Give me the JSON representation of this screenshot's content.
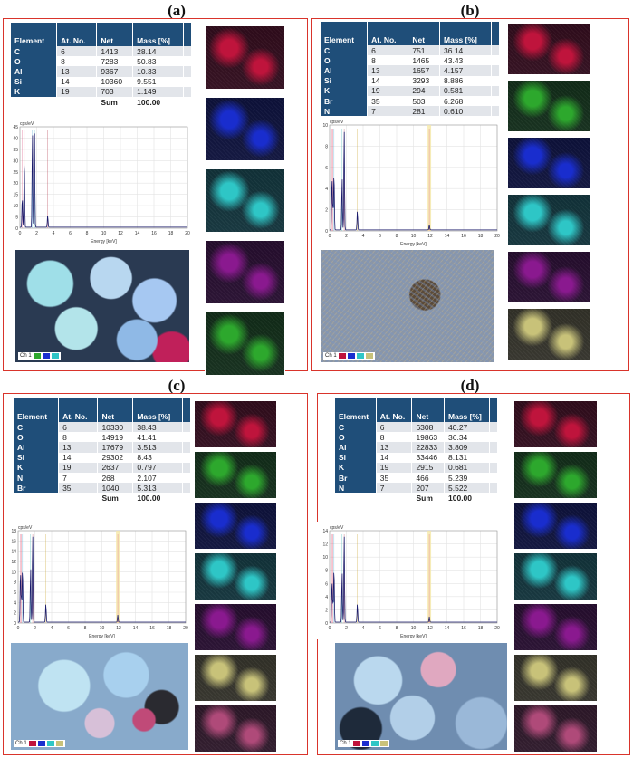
{
  "panels": [
    {
      "label": "(a)",
      "headers": [
        "Element",
        "At. No.",
        "Net",
        "Mass [%]"
      ],
      "rows": [
        [
          "C",
          "6",
          "1413",
          "28.14"
        ],
        [
          "O",
          "8",
          "7283",
          "50.83"
        ],
        [
          "Al",
          "13",
          "9367",
          "10.33"
        ],
        [
          "Si",
          "14",
          "10360",
          "9.551"
        ],
        [
          "K",
          "19",
          "703",
          "1.149"
        ]
      ],
      "sum_label": "Sum",
      "sum_value": "100.00",
      "spectrum": {
        "y_unit": "cps/eV",
        "y_ticks": [
          "0",
          "5",
          "10",
          "15",
          "20",
          "25",
          "30",
          "35",
          "40",
          "45"
        ],
        "x_label": "Energy [keV]",
        "x_ticks": [
          "0",
          "2",
          "4",
          "6",
          "8",
          "10",
          "12",
          "14",
          "16",
          "18",
          "20"
        ]
      },
      "legend_label": "Ch 1",
      "maps": [
        "#c0143c",
        "#1a2ecf",
        "#2fc6c6",
        "#8a1a8f",
        "#2ea82e"
      ]
    },
    {
      "label": "(b)",
      "headers": [
        "Element",
        "At. No.",
        "Net",
        "Mass [%]"
      ],
      "rows": [
        [
          "C",
          "6",
          "751",
          "36.14"
        ],
        [
          "O",
          "8",
          "1465",
          "43.43"
        ],
        [
          "Al",
          "13",
          "1657",
          "4.157"
        ],
        [
          "Si",
          "14",
          "3293",
          "8.886"
        ],
        [
          "K",
          "19",
          "294",
          "0.581"
        ],
        [
          "Br",
          "35",
          "503",
          "6.268"
        ],
        [
          "N",
          "7",
          "281",
          "0.610"
        ]
      ],
      "sum_label": "Sum",
      "sum_value": "100",
      "spectrum": {
        "y_unit": "cps/eV",
        "y_ticks": [
          "0",
          "2",
          "4",
          "6",
          "8",
          "10"
        ],
        "x_label": "Energy [keV]",
        "x_ticks": [
          "0",
          "2",
          "4",
          "6",
          "8",
          "10",
          "12",
          "14",
          "16",
          "18",
          "20"
        ]
      },
      "legend_label": "Ch 1",
      "maps": [
        "#c0143c",
        "#2ea82e",
        "#1a2ecf",
        "#2fc6c6",
        "#8a1a8f",
        "#c8c27a"
      ]
    },
    {
      "label": "(c)",
      "headers": [
        "Element",
        "At. No.",
        "Net",
        "Mass [%]"
      ],
      "rows": [
        [
          "C",
          "6",
          "10330",
          "38.43"
        ],
        [
          "O",
          "8",
          "14919",
          "41.41"
        ],
        [
          "Al",
          "13",
          "17679",
          "3.513"
        ],
        [
          "Si",
          "14",
          "29302",
          "8.43"
        ],
        [
          "K",
          "19",
          "2637",
          "0.797"
        ],
        [
          "N",
          "7",
          "268",
          "2.107"
        ],
        [
          "Br",
          "35",
          "1040",
          "5.313"
        ]
      ],
      "sum_label": "Sum",
      "sum_value": "100.00",
      "spectrum": {
        "y_unit": "cps/eV",
        "y_ticks": [
          "0",
          "2",
          "4",
          "6",
          "8",
          "10",
          "12",
          "14",
          "16",
          "18"
        ],
        "x_label": "Energy [keV]",
        "x_ticks": [
          "0",
          "2",
          "4",
          "6",
          "8",
          "10",
          "12",
          "14",
          "16",
          "18",
          "20"
        ]
      },
      "legend_label": "Ch 1",
      "maps": [
        "#c0143c",
        "#2ea82e",
        "#1a2ecf",
        "#2fc6c6",
        "#8a1a8f",
        "#c8c27a",
        "#b04a7a"
      ]
    },
    {
      "label": "(d)",
      "headers": [
        "Element",
        "At. No.",
        "Net",
        "Mass [%]"
      ],
      "rows": [
        [
          "C",
          "6",
          "6308",
          "40.27"
        ],
        [
          "O",
          "8",
          "19863",
          "36.34"
        ],
        [
          "Al",
          "13",
          "22833",
          "3.809"
        ],
        [
          "Si",
          "14",
          "33446",
          "8.131"
        ],
        [
          "K",
          "19",
          "2915",
          "0.681"
        ],
        [
          "Br",
          "35",
          "466",
          "5.239"
        ],
        [
          "N",
          "7",
          "207",
          "5.522"
        ]
      ],
      "sum_label": "Sum",
      "sum_value": "100.00",
      "spectrum": {
        "y_unit": "cps/eV",
        "y_ticks": [
          "0",
          "2",
          "4",
          "6",
          "8",
          "10",
          "12",
          "14"
        ],
        "x_label": "Energy [keV]",
        "x_ticks": [
          "0",
          "2",
          "4",
          "6",
          "8",
          "10",
          "12",
          "14",
          "16",
          "18",
          "20"
        ]
      },
      "legend_label": "Ch 1",
      "maps": [
        "#c0143c",
        "#2ea82e",
        "#1a2ecf",
        "#2fc6c6",
        "#8a1a8f",
        "#c8c27a",
        "#b04a7a"
      ]
    }
  ]
}
